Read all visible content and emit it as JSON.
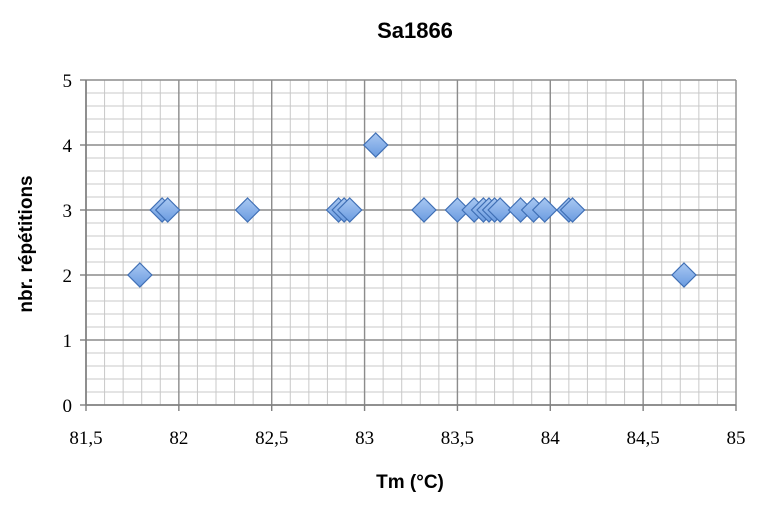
{
  "chart_data": {
    "type": "scatter",
    "title": "Sa1866",
    "xlabel": "Tm (°C)",
    "ylabel": "nbr. répétitions",
    "xlim": [
      81.5,
      85
    ],
    "ylim": [
      0,
      5
    ],
    "x_ticks": [
      "81,5",
      "82",
      "82,5",
      "83",
      "83,5",
      "84",
      "84,5",
      "85"
    ],
    "y_ticks": [
      "0",
      "1",
      "2",
      "3",
      "4",
      "5"
    ],
    "grid": true,
    "legend": "none",
    "marker": "diamond",
    "marker_color": "#6a9be0",
    "series": [
      {
        "points": [
          {
            "x": 81.79,
            "y": 2
          },
          {
            "x": 81.91,
            "y": 3
          },
          {
            "x": 81.94,
            "y": 3
          },
          {
            "x": 82.37,
            "y": 3
          },
          {
            "x": 82.86,
            "y": 3
          },
          {
            "x": 82.89,
            "y": 3
          },
          {
            "x": 82.92,
            "y": 3
          },
          {
            "x": 83.06,
            "y": 4
          },
          {
            "x": 83.32,
            "y": 3
          },
          {
            "x": 83.5,
            "y": 3
          },
          {
            "x": 83.59,
            "y": 3
          },
          {
            "x": 83.64,
            "y": 3
          },
          {
            "x": 83.67,
            "y": 3
          },
          {
            "x": 83.7,
            "y": 3
          },
          {
            "x": 83.73,
            "y": 3
          },
          {
            "x": 83.84,
            "y": 3
          },
          {
            "x": 83.91,
            "y": 3
          },
          {
            "x": 83.97,
            "y": 3
          },
          {
            "x": 84.1,
            "y": 3
          },
          {
            "x": 84.12,
            "y": 3
          },
          {
            "x": 84.72,
            "y": 2
          }
        ]
      }
    ]
  }
}
